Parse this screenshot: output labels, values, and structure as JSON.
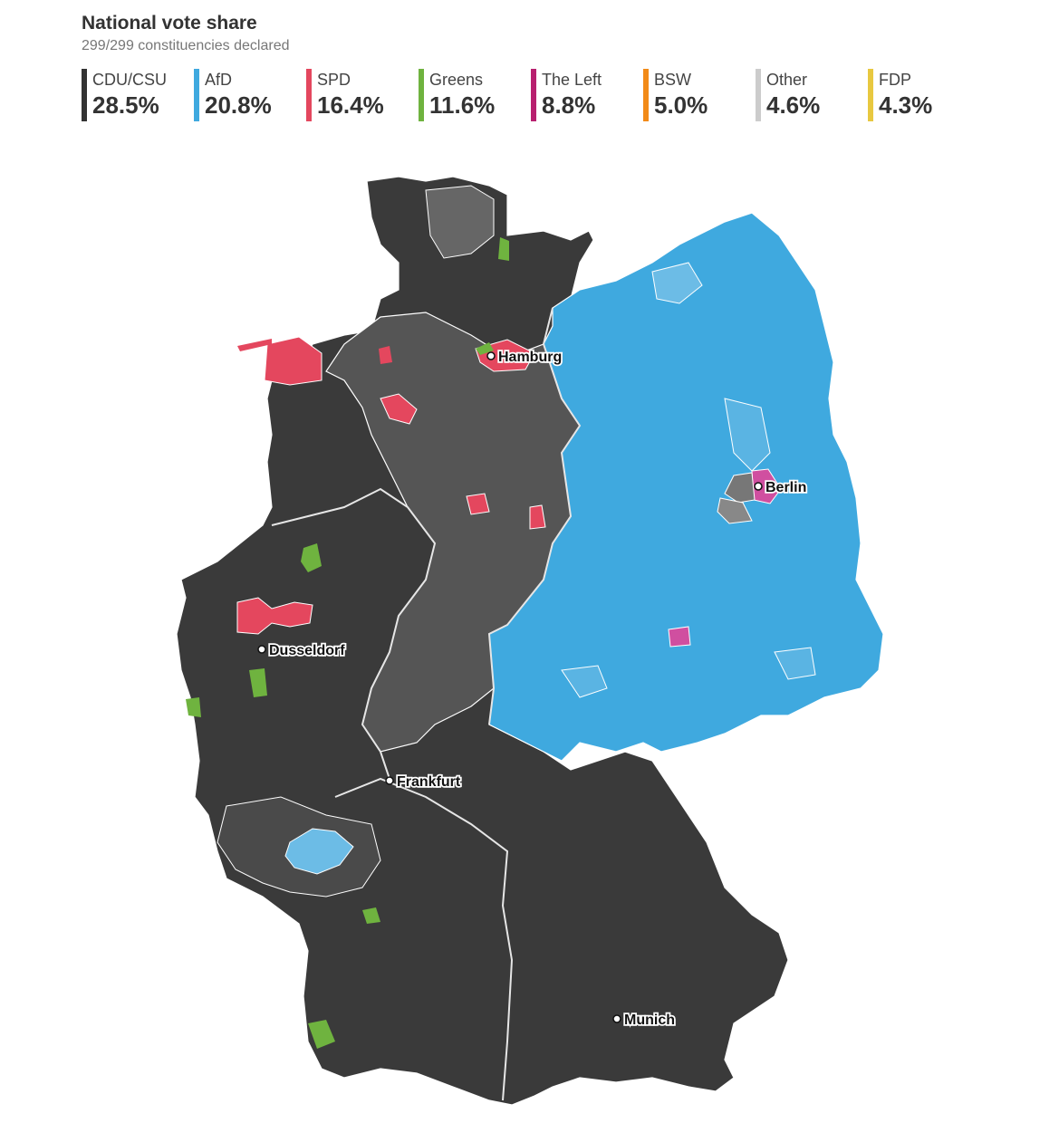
{
  "header": {
    "title": "National vote share",
    "subtitle": "299/299 constituencies declared"
  },
  "legend": [
    {
      "party": "CDU/CSU",
      "share": "28.5%",
      "color": "#333333"
    },
    {
      "party": "AfD",
      "share": "20.8%",
      "color": "#3fa9df"
    },
    {
      "party": "SPD",
      "share": "16.4%",
      "color": "#e4475e"
    },
    {
      "party": "Greens",
      "share": "11.6%",
      "color": "#6fb33f"
    },
    {
      "party": "The Left",
      "share": "8.8%",
      "color": "#b8206f"
    },
    {
      "party": "BSW",
      "share": "5.0%",
      "color": "#f28a18"
    },
    {
      "party": "Other",
      "share": "4.6%",
      "color": "#cccccc"
    },
    {
      "party": "FDP",
      "share": "4.3%",
      "color": "#e8c840"
    }
  ],
  "map": {
    "cities": [
      "Hamburg",
      "Berlin",
      "Dusseldorf",
      "Frankfurt",
      "Munich"
    ]
  }
}
